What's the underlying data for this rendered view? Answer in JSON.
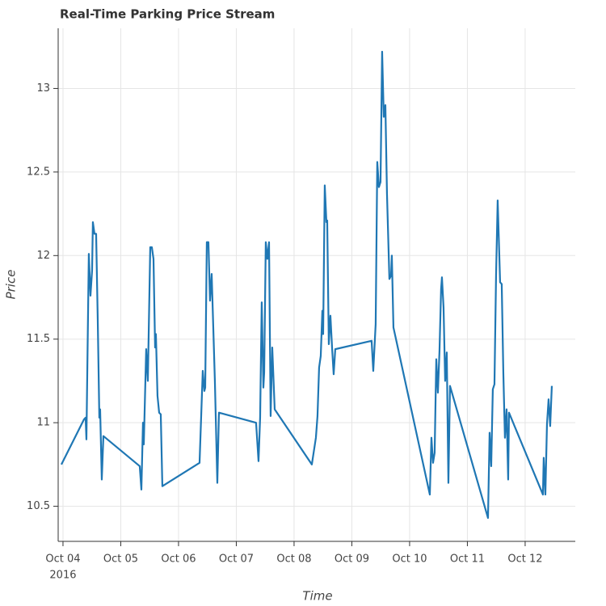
{
  "chart_data": {
    "type": "line",
    "title": "Real-Time Parking Price Stream",
    "x_label": "Time",
    "y_label": "Price",
    "x_year_label": "2016",
    "xlim": [
      "2016-10-03 22:00",
      "2016-10-12 20:50"
    ],
    "ylim": [
      10.29,
      13.36
    ],
    "xticks": [
      {
        "value": "2016-10-04 00:00",
        "label": "Oct 04"
      },
      {
        "value": "2016-10-05 00:00",
        "label": "Oct 05"
      },
      {
        "value": "2016-10-06 00:00",
        "label": "Oct 06"
      },
      {
        "value": "2016-10-07 00:00",
        "label": "Oct 07"
      },
      {
        "value": "2016-10-08 00:00",
        "label": "Oct 08"
      },
      {
        "value": "2016-10-09 00:00",
        "label": "Oct 09"
      },
      {
        "value": "2016-10-10 00:00",
        "label": "Oct 10"
      },
      {
        "value": "2016-10-11 00:00",
        "label": "Oct 11"
      },
      {
        "value": "2016-10-12 00:00",
        "label": "Oct 12"
      }
    ],
    "yticks": [
      10.5,
      11,
      11.5,
      12,
      12.5,
      13
    ],
    "grid": true,
    "x": [
      "2016-10-03 23:20",
      "2016-10-04 08:44",
      "2016-10-04 09:24",
      "2016-10-04 09:44",
      "2016-10-04 10:44",
      "2016-10-04 11:25",
      "2016-10-04 12:05",
      "2016-10-04 12:25",
      "2016-10-04 13:05",
      "2016-10-04 13:46",
      "2016-10-04 14:26",
      "2016-10-04 15:06",
      "2016-10-04 15:26",
      "2016-10-04 16:07",
      "2016-10-04 16:47",
      "2016-10-05 07:53",
      "2016-10-05 08:34",
      "2016-10-05 09:14",
      "2016-10-05 09:34",
      "2016-10-05 10:34",
      "2016-10-05 11:15",
      "2016-10-05 12:15",
      "2016-10-05 12:55",
      "2016-10-05 13:36",
      "2016-10-05 14:16",
      "2016-10-05 14:36",
      "2016-10-05 15:16",
      "2016-10-05 15:57",
      "2016-10-05 16:37",
      "2016-10-05 17:17",
      "2016-10-06 08:44",
      "2016-10-06 10:04",
      "2016-10-06 10:44",
      "2016-10-06 11:05",
      "2016-10-06 11:45",
      "2016-10-06 12:25",
      "2016-10-06 13:05",
      "2016-10-06 13:46",
      "2016-10-06 15:06",
      "2016-10-06 16:07",
      "2016-10-06 16:47",
      "2016-10-07 08:13",
      "2016-10-07 09:14",
      "2016-10-07 09:54",
      "2016-10-07 10:34",
      "2016-10-07 11:15",
      "2016-10-07 11:35",
      "2016-10-07 12:15",
      "2016-10-07 12:55",
      "2016-10-07 13:36",
      "2016-10-07 14:16",
      "2016-10-07 14:56",
      "2016-10-07 15:57",
      "2016-10-08 07:23",
      "2016-10-08 09:04",
      "2016-10-08 09:44",
      "2016-10-08 10:24",
      "2016-10-08 11:05",
      "2016-10-08 11:45",
      "2016-10-08 12:05",
      "2016-10-08 12:45",
      "2016-10-08 13:26",
      "2016-10-08 13:46",
      "2016-10-08 14:26",
      "2016-10-08 15:06",
      "2016-10-08 15:47",
      "2016-10-08 16:27",
      "2016-10-08 17:07",
      "2016-10-09 08:13",
      "2016-10-09 08:54",
      "2016-10-09 09:54",
      "2016-10-09 10:34",
      "2016-10-09 11:15",
      "2016-10-09 11:55",
      "2016-10-09 12:35",
      "2016-10-09 13:16",
      "2016-10-09 13:56",
      "2016-10-09 14:36",
      "2016-10-09 15:36",
      "2016-10-09 16:17",
      "2016-10-09 16:37",
      "2016-10-09 17:17",
      "2016-10-10 08:24",
      "2016-10-10 09:04",
      "2016-10-10 09:44",
      "2016-10-10 10:24",
      "2016-10-10 11:05",
      "2016-10-10 11:45",
      "2016-10-10 12:25",
      "2016-10-10 13:05",
      "2016-10-10 13:26",
      "2016-10-10 14:06",
      "2016-10-10 14:46",
      "2016-10-10 15:26",
      "2016-10-10 16:07",
      "2016-10-10 16:47",
      "2016-10-11 08:34",
      "2016-10-11 09:14",
      "2016-10-11 09:54",
      "2016-10-11 10:34",
      "2016-10-11 11:15",
      "2016-10-11 11:55",
      "2016-10-11 12:35",
      "2016-10-11 13:36",
      "2016-10-11 14:16",
      "2016-10-11 14:56",
      "2016-10-11 15:36",
      "2016-10-11 16:17",
      "2016-10-11 16:57",
      "2016-10-11 17:17",
      "2016-10-12 07:23",
      "2016-10-12 07:43",
      "2016-10-12 08:24",
      "2016-10-12 09:04",
      "2016-10-12 09:44",
      "2016-10-12 10:24",
      "2016-10-12 11:05"
    ],
    "series": [
      {
        "name": "Price",
        "color": "#1f77b4",
        "values": [
          10.75,
          11.02,
          11.03,
          10.9,
          12.01,
          11.76,
          11.91,
          12.2,
          12.13,
          12.13,
          11.62,
          11.03,
          11.08,
          10.66,
          10.92,
          10.74,
          10.6,
          11.0,
          10.87,
          11.44,
          11.25,
          12.05,
          12.05,
          11.98,
          11.45,
          11.53,
          11.16,
          11.06,
          11.05,
          10.62,
          10.76,
          11.31,
          11.19,
          11.21,
          12.08,
          12.08,
          11.73,
          11.89,
          11.25,
          10.64,
          11.06,
          11.0,
          10.77,
          11.03,
          11.72,
          11.21,
          11.3,
          12.08,
          11.98,
          12.08,
          11.04,
          11.45,
          11.08,
          10.75,
          10.91,
          11.04,
          11.33,
          11.4,
          11.67,
          11.53,
          12.42,
          12.2,
          12.21,
          11.47,
          11.64,
          11.45,
          11.29,
          11.44,
          11.49,
          11.31,
          11.59,
          12.56,
          12.41,
          12.44,
          13.22,
          12.83,
          12.9,
          12.37,
          11.86,
          11.88,
          12.0,
          11.57,
          10.57,
          10.91,
          10.76,
          10.82,
          11.38,
          11.18,
          11.43,
          11.8,
          11.87,
          11.69,
          11.25,
          11.42,
          10.64,
          11.22,
          10.43,
          10.94,
          10.74,
          11.2,
          11.23,
          11.88,
          12.33,
          11.84,
          11.83,
          11.3,
          10.91,
          11.08,
          10.66,
          11.06,
          10.57,
          10.79,
          10.57,
          10.99,
          11.14,
          10.98,
          11.22
        ]
      }
    ]
  }
}
